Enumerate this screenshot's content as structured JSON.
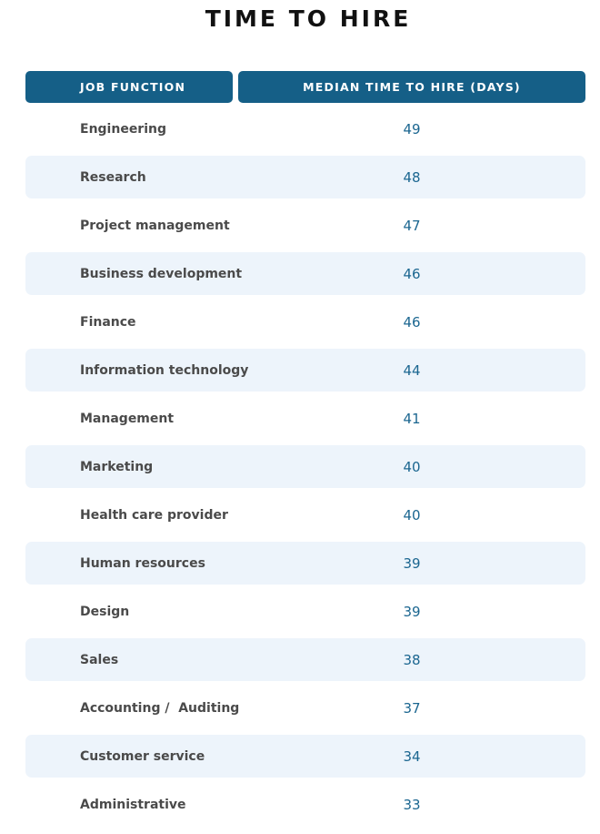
{
  "chart_data": {
    "type": "table",
    "title": "TIME TO HIRE",
    "columns": [
      "JOB FUNCTION",
      "MEDIAN TIME TO HIRE (DAYS)"
    ],
    "rows": [
      {
        "function": "Engineering",
        "median_days": 49
      },
      {
        "function": "Research",
        "median_days": 48
      },
      {
        "function": "Project management",
        "median_days": 47
      },
      {
        "function": "Business development",
        "median_days": 46
      },
      {
        "function": "Finance",
        "median_days": 46
      },
      {
        "function": "Information technology",
        "median_days": 44
      },
      {
        "function": "Management",
        "median_days": 41
      },
      {
        "function": "Marketing",
        "median_days": 40
      },
      {
        "function": "Health care provider",
        "median_days": 40
      },
      {
        "function": "Human resources",
        "median_days": 39
      },
      {
        "function": "Design",
        "median_days": 39
      },
      {
        "function": "Sales",
        "median_days": 38
      },
      {
        "function": "Accounting /  Auditing",
        "median_days": 37
      },
      {
        "function": "Customer service",
        "median_days": 34
      },
      {
        "function": "Administrative",
        "median_days": 33
      }
    ]
  },
  "colors": {
    "header_bg": "#155f87",
    "header_text": "#ffffff",
    "row_shade": "#edf4fb",
    "function_text": "#4a4a4a",
    "value_text": "#1b6690"
  }
}
